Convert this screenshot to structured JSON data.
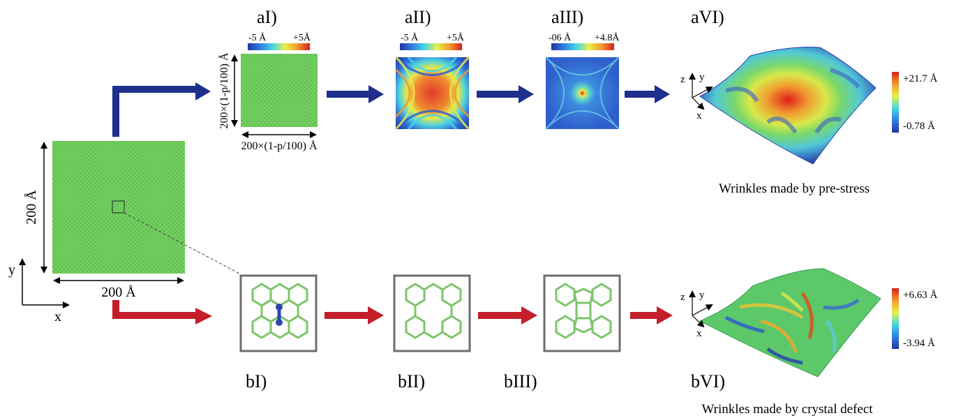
{
  "panels": {
    "aI": "aI)",
    "aII": "aII)",
    "aIII": "aIII)",
    "aVI": "aVI)",
    "bI": "bI)",
    "bII": "bII)",
    "bIII": "bIII)",
    "bVI": "bVI)"
  },
  "main_sheet": {
    "width_label": "200 Å",
    "height_label": "200 Å",
    "axis_x": "x",
    "axis_y": "y"
  },
  "aI": {
    "cbar_min": "-5 Å",
    "cbar_max": "+5Å",
    "width_label": "200×(1-p/100) Å",
    "height_label": "200×(1-p/100) Å"
  },
  "aII": {
    "cbar_min": "-5 Å",
    "cbar_max": "+5Å"
  },
  "aIII": {
    "cbar_min": "-06 Å",
    "cbar_max": "+4.8Å"
  },
  "aVI": {
    "cbar_max": "+21.7 Å",
    "cbar_min": "-0.78 Å",
    "axis_x": "x",
    "axis_y": "y",
    "axis_z": "z",
    "caption": "Wrinkles made by pre-stress"
  },
  "bVI": {
    "cbar_max": "+6.63 Å",
    "cbar_min": "-3.94 Å",
    "axis_x": "x",
    "axis_y": "y",
    "axis_z": "z",
    "caption": "Wrinkles made by crystal defect"
  },
  "colors": {
    "blue_arrow": "#1f2f8c",
    "red_arrow": "#c41e2a",
    "sheet_green": "#6fce5e",
    "atom_green": "#8fd27a",
    "defect_blue": "#2a47b0",
    "frame_gray": "#6e6e6e"
  }
}
